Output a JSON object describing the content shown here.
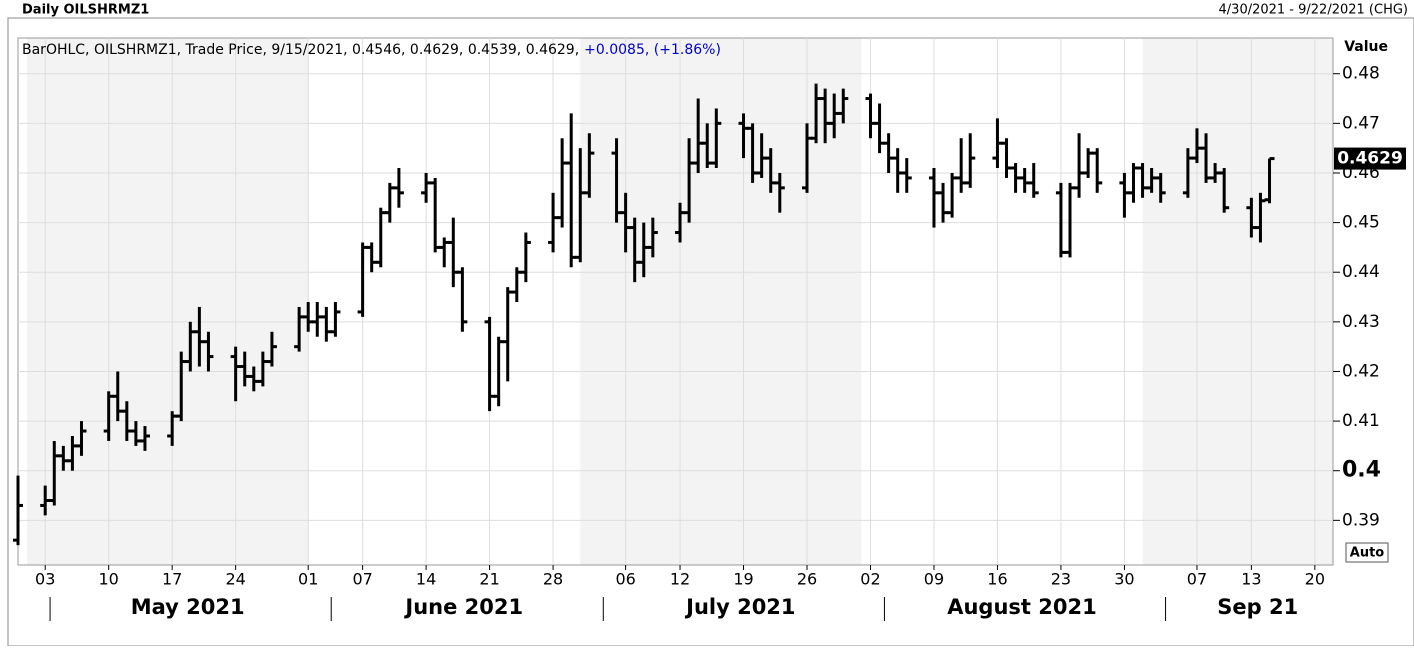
{
  "chart_data": {
    "type": "ohlc",
    "title": "Daily OILSHRMZ1",
    "date_range": "4/30/2021 - 9/22/2021 (CHG)",
    "legend": {
      "text": "BarOHLC, OILSHRMZ1, Trade Price, 9/15/2021, 0.4546, 0.4629, 0.4539, 0.4629,",
      "change": "+0.0085, (+1.86%)",
      "change_color": "#0000cc"
    },
    "y_label": "Value",
    "auto_button": "Auto",
    "color": "#000000",
    "grid": true,
    "xlim": [
      "2021-04-30",
      "2021-09-22"
    ],
    "ylim": [
      0.381,
      0.4872
    ],
    "yticks": [
      0.39,
      0.4,
      0.41,
      0.42,
      0.43,
      0.44,
      0.45,
      0.46,
      0.47,
      0.48
    ],
    "bold_ytick": 0.4,
    "xticks": [
      {
        "value": "2021-05-03",
        "label": "03"
      },
      {
        "value": "2021-05-10",
        "label": "10"
      },
      {
        "value": "2021-05-17",
        "label": "17"
      },
      {
        "value": "2021-05-24",
        "label": "24"
      },
      {
        "value": "2021-06-01",
        "label": "01"
      },
      {
        "value": "2021-06-07",
        "label": "07"
      },
      {
        "value": "2021-06-14",
        "label": "14"
      },
      {
        "value": "2021-06-21",
        "label": "21"
      },
      {
        "value": "2021-06-28",
        "label": "28"
      },
      {
        "value": "2021-07-06",
        "label": "06"
      },
      {
        "value": "2021-07-12",
        "label": "12"
      },
      {
        "value": "2021-07-19",
        "label": "19"
      },
      {
        "value": "2021-07-26",
        "label": "26"
      },
      {
        "value": "2021-08-02",
        "label": "02"
      },
      {
        "value": "2021-08-09",
        "label": "09"
      },
      {
        "value": "2021-08-16",
        "label": "16"
      },
      {
        "value": "2021-08-23",
        "label": "23"
      },
      {
        "value": "2021-08-30",
        "label": "30"
      },
      {
        "value": "2021-09-07",
        "label": "07"
      },
      {
        "value": "2021-09-13",
        "label": "13"
      },
      {
        "value": "2021-09-20",
        "label": "20"
      }
    ],
    "months": [
      {
        "label": "May 2021",
        "start": "2021-05-01"
      },
      {
        "label": "June 2021",
        "start": "2021-06-01"
      },
      {
        "label": "July 2021",
        "start": "2021-07-01"
      },
      {
        "label": "August 2021",
        "start": "2021-08-01"
      },
      {
        "label": "Sep 21",
        "start": "2021-09-01"
      }
    ],
    "x": [
      "2021-04-30",
      "2021-05-03",
      "2021-05-04",
      "2021-05-05",
      "2021-05-06",
      "2021-05-07",
      "2021-05-10",
      "2021-05-11",
      "2021-05-12",
      "2021-05-13",
      "2021-05-14",
      "2021-05-17",
      "2021-05-18",
      "2021-05-19",
      "2021-05-20",
      "2021-05-21",
      "2021-05-24",
      "2021-05-25",
      "2021-05-26",
      "2021-05-27",
      "2021-05-28",
      "2021-05-31",
      "2021-06-01",
      "2021-06-02",
      "2021-06-03",
      "2021-06-04",
      "2021-06-07",
      "2021-06-08",
      "2021-06-09",
      "2021-06-10",
      "2021-06-11",
      "2021-06-14",
      "2021-06-15",
      "2021-06-16",
      "2021-06-17",
      "2021-06-18",
      "2021-06-21",
      "2021-06-22",
      "2021-06-23",
      "2021-06-24",
      "2021-06-25",
      "2021-06-28",
      "2021-06-29",
      "2021-06-30",
      "2021-07-01",
      "2021-07-02",
      "2021-07-05",
      "2021-07-06",
      "2021-07-07",
      "2021-07-08",
      "2021-07-09",
      "2021-07-12",
      "2021-07-13",
      "2021-07-14",
      "2021-07-15",
      "2021-07-16",
      "2021-07-19",
      "2021-07-20",
      "2021-07-21",
      "2021-07-22",
      "2021-07-23",
      "2021-07-26",
      "2021-07-27",
      "2021-07-28",
      "2021-07-29",
      "2021-07-30",
      "2021-08-02",
      "2021-08-03",
      "2021-08-04",
      "2021-08-05",
      "2021-08-06",
      "2021-08-09",
      "2021-08-10",
      "2021-08-11",
      "2021-08-12",
      "2021-08-13",
      "2021-08-16",
      "2021-08-17",
      "2021-08-18",
      "2021-08-19",
      "2021-08-20",
      "2021-08-23",
      "2021-08-24",
      "2021-08-25",
      "2021-08-26",
      "2021-08-27",
      "2021-08-30",
      "2021-08-31",
      "2021-09-01",
      "2021-09-02",
      "2021-09-03",
      "2021-09-06",
      "2021-09-07",
      "2021-09-08",
      "2021-09-09",
      "2021-09-10",
      "2021-09-13",
      "2021-09-14",
      "2021-09-15"
    ],
    "ohlc": [
      [
        0.386,
        0.399,
        0.385,
        0.393
      ],
      [
        0.393,
        0.397,
        0.391,
        0.394
      ],
      [
        0.394,
        0.406,
        0.393,
        0.403
      ],
      [
        0.403,
        0.405,
        0.4,
        0.402
      ],
      [
        0.402,
        0.407,
        0.4,
        0.405
      ],
      [
        0.405,
        0.41,
        0.403,
        0.408
      ],
      [
        0.408,
        0.416,
        0.406,
        0.415
      ],
      [
        0.415,
        0.42,
        0.41,
        0.412
      ],
      [
        0.412,
        0.414,
        0.406,
        0.408
      ],
      [
        0.408,
        0.41,
        0.405,
        0.406
      ],
      [
        0.406,
        0.409,
        0.404,
        0.407
      ],
      [
        0.407,
        0.412,
        0.405,
        0.411
      ],
      [
        0.411,
        0.424,
        0.41,
        0.422
      ],
      [
        0.422,
        0.43,
        0.42,
        0.428
      ],
      [
        0.428,
        0.433,
        0.421,
        0.426
      ],
      [
        0.426,
        0.428,
        0.42,
        0.423
      ],
      [
        0.423,
        0.425,
        0.414,
        0.421
      ],
      [
        0.421,
        0.424,
        0.417,
        0.419
      ],
      [
        0.419,
        0.421,
        0.416,
        0.418
      ],
      [
        0.418,
        0.424,
        0.417,
        0.422
      ],
      [
        0.422,
        0.428,
        0.421,
        0.425
      ],
      [
        0.425,
        0.433,
        0.424,
        0.431
      ],
      [
        0.431,
        0.434,
        0.428,
        0.43
      ],
      [
        0.43,
        0.434,
        0.427,
        0.431
      ],
      [
        0.431,
        0.433,
        0.426,
        0.428
      ],
      [
        0.428,
        0.434,
        0.427,
        0.432
      ],
      [
        0.432,
        0.446,
        0.431,
        0.445
      ],
      [
        0.445,
        0.446,
        0.44,
        0.442
      ],
      [
        0.442,
        0.453,
        0.441,
        0.452
      ],
      [
        0.452,
        0.458,
        0.45,
        0.457
      ],
      [
        0.457,
        0.461,
        0.453,
        0.456
      ],
      [
        0.456,
        0.46,
        0.454,
        0.458
      ],
      [
        0.458,
        0.459,
        0.444,
        0.445
      ],
      [
        0.445,
        0.447,
        0.441,
        0.446
      ],
      [
        0.446,
        0.451,
        0.437,
        0.44
      ],
      [
        0.44,
        0.441,
        0.428,
        0.43
      ],
      [
        0.43,
        0.431,
        0.412,
        0.415
      ],
      [
        0.415,
        0.427,
        0.413,
        0.426
      ],
      [
        0.426,
        0.437,
        0.418,
        0.436
      ],
      [
        0.436,
        0.441,
        0.434,
        0.44
      ],
      [
        0.44,
        0.448,
        0.438,
        0.446
      ],
      [
        0.446,
        0.456,
        0.444,
        0.451
      ],
      [
        0.451,
        0.467,
        0.449,
        0.462
      ],
      [
        0.462,
        0.472,
        0.441,
        0.443
      ],
      [
        0.443,
        0.465,
        0.442,
        0.456
      ],
      [
        0.456,
        0.468,
        0.455,
        0.464
      ],
      [
        0.464,
        0.467,
        0.45,
        0.452
      ],
      [
        0.452,
        0.456,
        0.444,
        0.449
      ],
      [
        0.449,
        0.451,
        0.438,
        0.442
      ],
      [
        0.442,
        0.45,
        0.439,
        0.445
      ],
      [
        0.445,
        0.451,
        0.443,
        0.448
      ],
      [
        0.448,
        0.454,
        0.446,
        0.452
      ],
      [
        0.452,
        0.467,
        0.45,
        0.462
      ],
      [
        0.462,
        0.475,
        0.46,
        0.466
      ],
      [
        0.466,
        0.47,
        0.461,
        0.462
      ],
      [
        0.462,
        0.473,
        0.461,
        0.47
      ],
      [
        0.47,
        0.472,
        0.463,
        0.469
      ],
      [
        0.469,
        0.47,
        0.458,
        0.46
      ],
      [
        0.46,
        0.468,
        0.459,
        0.463
      ],
      [
        0.463,
        0.465,
        0.456,
        0.458
      ],
      [
        0.458,
        0.46,
        0.452,
        0.457
      ],
      [
        0.457,
        0.47,
        0.456,
        0.467
      ],
      [
        0.467,
        0.478,
        0.466,
        0.475
      ],
      [
        0.475,
        0.477,
        0.466,
        0.47
      ],
      [
        0.47,
        0.476,
        0.467,
        0.472
      ],
      [
        0.472,
        0.477,
        0.47,
        0.475
      ],
      [
        0.475,
        0.476,
        0.467,
        0.47
      ],
      [
        0.47,
        0.474,
        0.464,
        0.466
      ],
      [
        0.466,
        0.468,
        0.46,
        0.463
      ],
      [
        0.463,
        0.465,
        0.456,
        0.46
      ],
      [
        0.46,
        0.463,
        0.456,
        0.459
      ],
      [
        0.459,
        0.461,
        0.449,
        0.456
      ],
      [
        0.456,
        0.458,
        0.45,
        0.452
      ],
      [
        0.452,
        0.46,
        0.451,
        0.459
      ],
      [
        0.459,
        0.467,
        0.456,
        0.458
      ],
      [
        0.458,
        0.468,
        0.457,
        0.463
      ],
      [
        0.463,
        0.471,
        0.461,
        0.466
      ],
      [
        0.466,
        0.467,
        0.459,
        0.461
      ],
      [
        0.461,
        0.462,
        0.456,
        0.459
      ],
      [
        0.459,
        0.461,
        0.456,
        0.458
      ],
      [
        0.458,
        0.462,
        0.455,
        0.456
      ],
      [
        0.456,
        0.458,
        0.443,
        0.444
      ],
      [
        0.444,
        0.458,
        0.443,
        0.457
      ],
      [
        0.457,
        0.468,
        0.455,
        0.46
      ],
      [
        0.46,
        0.465,
        0.459,
        0.464
      ],
      [
        0.464,
        0.465,
        0.456,
        0.458
      ],
      [
        0.458,
        0.46,
        0.451,
        0.456
      ],
      [
        0.456,
        0.462,
        0.454,
        0.461
      ],
      [
        0.461,
        0.462,
        0.455,
        0.457
      ],
      [
        0.457,
        0.461,
        0.456,
        0.459
      ],
      [
        0.459,
        0.46,
        0.454,
        0.456
      ],
      [
        0.456,
        0.465,
        0.455,
        0.463
      ],
      [
        0.463,
        0.469,
        0.462,
        0.465
      ],
      [
        0.465,
        0.468,
        0.458,
        0.459
      ],
      [
        0.459,
        0.462,
        0.458,
        0.46
      ],
      [
        0.46,
        0.461,
        0.452,
        0.453
      ],
      [
        0.453,
        0.455,
        0.447,
        0.449
      ],
      [
        0.449,
        0.456,
        0.446,
        0.4544
      ],
      [
        0.4546,
        0.4629,
        0.4539,
        0.4629
      ]
    ]
  }
}
